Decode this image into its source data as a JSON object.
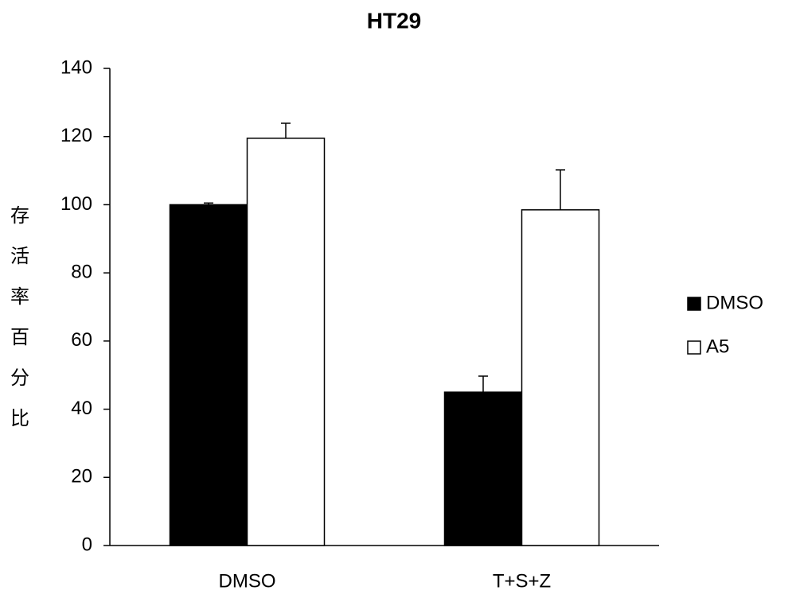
{
  "chart_data": {
    "type": "bar",
    "title": "HT29",
    "y_label": "存活率百分比",
    "categories": [
      "DMSO",
      "T+S+Z"
    ],
    "series": [
      {
        "name": "DMSO",
        "color": "#000000",
        "values": [
          100,
          45
        ],
        "errors": [
          0.5,
          4.7
        ]
      },
      {
        "name": "A5",
        "color": "#ffffff",
        "values": [
          119.5,
          98.5
        ],
        "errors": [
          4.4,
          11.7
        ]
      }
    ],
    "ylim": [
      0,
      140
    ],
    "yticks": [
      0,
      20,
      40,
      60,
      80,
      100,
      120,
      140
    ],
    "legend": "right"
  }
}
